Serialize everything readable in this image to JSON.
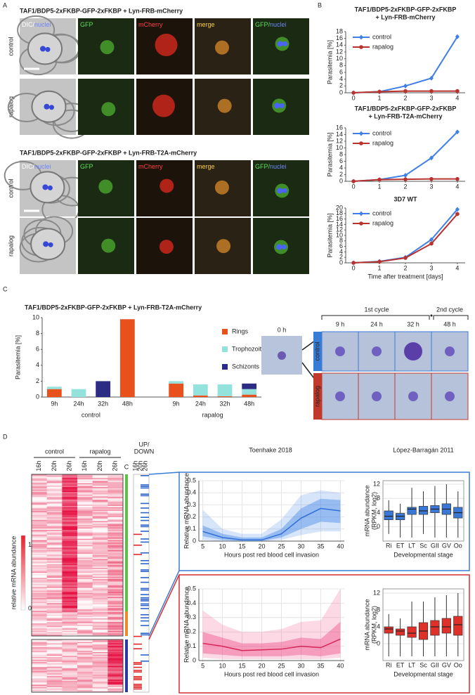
{
  "panel_labels": [
    "A",
    "B",
    "C",
    "D"
  ],
  "panel_a": {
    "constructs": [
      "TAF1/BDP5-2xFKBP-GFP-2xFKBP + Lyn-FRB-mCherry",
      "TAF1/BDP5-2xFKBP-GFP-2xFKBP + Lyn-FRB-T2A-mCherry"
    ],
    "conditions": [
      {
        "text": "control",
        "color": "#3a7bd5"
      },
      {
        "text": "rapalog",
        "color": "#c0392b"
      }
    ],
    "channels": [
      [
        {
          "text": "DIC/",
          "color": "#ffffff"
        },
        {
          "text": "nuclei",
          "color": "#6f86ff"
        }
      ],
      [
        {
          "text": "GFP",
          "color": "#5fe05f"
        }
      ],
      [
        {
          "text": "mCherry",
          "color": "#ff4040"
        }
      ],
      [
        {
          "text": "merge",
          "color": "#ffd23a"
        }
      ],
      [
        {
          "text": "GFP/",
          "color": "#5fe05f"
        },
        {
          "text": "nuclei",
          "color": "#6f86ff"
        }
      ]
    ]
  },
  "panel_c_images": {
    "start": "0 h",
    "cycles": [
      "1st cycle",
      "2nd cycle"
    ],
    "times": [
      "9 h",
      "24 h",
      "32 h",
      "48 h"
    ]
  },
  "panel_d_heatmap": {
    "groups": [
      "control",
      "rapalog"
    ],
    "times": [
      "16h",
      "20h",
      "26h"
    ],
    "colorbar_label": "relative mRNA abundance",
    "colorbar_ticks": [
      1,
      0
    ],
    "cluster_label": "C",
    "updown": [
      {
        "text": "UP/",
        "color": "#d03030"
      },
      {
        "text": "DOWN",
        "color": "#3a7bd5"
      }
    ]
  },
  "chart_data": [
    {
      "type": "line",
      "title": [
        "TAF1/BDP5-2xFKBP-GFP-2xFKBP",
        "+ Lyn-FRB-mCherry"
      ],
      "ylabel": "Parasitemia [%]",
      "x": [
        0,
        1,
        2,
        3,
        4
      ],
      "xlim": [
        -0.3,
        4.3
      ],
      "xticks": [
        0,
        1,
        2,
        3,
        4
      ],
      "ylim": [
        0,
        18
      ],
      "yticks": [
        0,
        2,
        4,
        6,
        8,
        10,
        12,
        14,
        16,
        18
      ],
      "legend": "upper left",
      "series": [
        {
          "name": "control",
          "color": "#3f7fe6",
          "marker": "diamond",
          "values": [
            0,
            0.3,
            2,
            4.3,
            16.5
          ]
        },
        {
          "name": "rapalog",
          "color": "#b8322e",
          "marker": "circle",
          "values": [
            0,
            0.3,
            0.5,
            0.5,
            0.5
          ]
        }
      ]
    },
    {
      "type": "line",
      "title": [
        "TAF1/BDP5-2xFKBP-GFP-2xFKBP",
        "+ Lyn-FRB-T2A-mCherry"
      ],
      "ylabel": "Parasitemia [%]",
      "x": [
        0,
        1,
        2,
        3,
        4
      ],
      "xlim": [
        -0.3,
        4.3
      ],
      "xticks": [
        0,
        1,
        2,
        3,
        4
      ],
      "ylim": [
        0,
        16
      ],
      "yticks": [
        0,
        2,
        4,
        6,
        8,
        10,
        12,
        14,
        16
      ],
      "legend": "upper left",
      "series": [
        {
          "name": "control",
          "color": "#3f7fe6",
          "marker": "diamond",
          "values": [
            0,
            0.5,
            1.8,
            7,
            14.8
          ]
        },
        {
          "name": "rapalog",
          "color": "#b8322e",
          "marker": "circle",
          "values": [
            0,
            0.5,
            0.6,
            0.7,
            0.7
          ]
        }
      ]
    },
    {
      "type": "line",
      "title": [
        "3D7 WT"
      ],
      "ylabel": "Parasitemia [%]",
      "xlabel": "Time after treatment [days]",
      "x": [
        0,
        1,
        2,
        3,
        4
      ],
      "xlim": [
        -0.3,
        4.3
      ],
      "xticks": [
        0,
        1,
        2,
        3,
        4
      ],
      "ylim": [
        0,
        20
      ],
      "yticks": [
        0,
        2,
        4,
        6,
        8,
        10,
        12,
        14,
        16,
        18,
        20
      ],
      "legend": "upper left",
      "series": [
        {
          "name": "control",
          "color": "#3f7fe6",
          "marker": "diamond",
          "values": [
            0,
            0.5,
            2,
            8.5,
            19.5
          ]
        },
        {
          "name": "rapalog",
          "color": "#b8322e",
          "marker": "circle",
          "values": [
            0,
            0.4,
            1.8,
            7,
            17.8
          ]
        }
      ]
    },
    {
      "type": "bar",
      "title": [
        "TAF1/BDP5-2xFKBP-GFP-2xFKBP + Lyn-FRB-T2A-mCherry"
      ],
      "ylabel": "Parasitemia [%]",
      "categories": [
        "9h",
        "24h",
        "32h",
        "48h",
        "9h",
        "24h",
        "32h",
        "48h"
      ],
      "groups": [
        {
          "name": "control",
          "color": "#3a7bd5"
        },
        {
          "name": "rapalog",
          "color": "#c0392b"
        }
      ],
      "ylim": [
        0,
        10
      ],
      "yticks": [
        0,
        2,
        4,
        6,
        8,
        10
      ],
      "legend": "upper right",
      "series": [
        {
          "name": "Rings",
          "color": "#e8501c",
          "values": [
            1.0,
            0,
            0,
            9.8,
            1.7,
            0.2,
            0.1,
            0.3
          ]
        },
        {
          "name": "Trophozoites",
          "color": "#93e2dc",
          "values": [
            0.3,
            1.0,
            0,
            0,
            0.3,
            1.4,
            1.5,
            0.7
          ]
        },
        {
          "name": "Schizonts",
          "color": "#2c2c84",
          "values": [
            0,
            0,
            2.0,
            0,
            0,
            0,
            0,
            0.7
          ]
        }
      ]
    },
    {
      "type": "line",
      "title": [
        "Toenhake 2018"
      ],
      "ylabel": "Relative mRNA abundance",
      "xlabel": "Hours post red blood cell invasion",
      "grid": true,
      "x": [
        5,
        10,
        15,
        20,
        25,
        30,
        35,
        40
      ],
      "xlim": [
        4,
        41
      ],
      "xticks": [
        5,
        10,
        15,
        20,
        25,
        30,
        35,
        40
      ],
      "ylim": [
        0,
        0.5
      ],
      "yticks": [
        0,
        0.1,
        0.2,
        0.3,
        0.4,
        0.5
      ],
      "series": [
        {
          "color": "#2f6fd6",
          "band_color": "#4a8ae6",
          "values": [
            0.08,
            0.03,
            0.01,
            0.01,
            0.06,
            0.19,
            0.27,
            0.25
          ],
          "band_inner": {
            "low": [
              0.04,
              0.01,
              0,
              0,
              0.03,
              0.1,
              0.16,
              0.15
            ],
            "high": [
              0.13,
              0.06,
              0.03,
              0.03,
              0.1,
              0.27,
              0.35,
              0.34
            ]
          },
          "band_outer": {
            "low": [
              0.01,
              0,
              0,
              0,
              0.01,
              0.05,
              0.08,
              0.08
            ],
            "high": [
              0.26,
              0.1,
              0.06,
              0.06,
              0.18,
              0.38,
              0.42,
              0.4
            ]
          }
        }
      ]
    },
    {
      "type": "line",
      "ylabel": "Relative mRNA abundance",
      "xlabel": "Hours post red blood cell invasion",
      "grid": true,
      "x": [
        5,
        10,
        15,
        20,
        25,
        30,
        35,
        40
      ],
      "xlim": [
        4,
        41
      ],
      "xticks": [
        5,
        10,
        15,
        20,
        25,
        30,
        35,
        40
      ],
      "ylim": [
        0,
        0.5
      ],
      "yticks": [
        0,
        0.1,
        0.2,
        0.3,
        0.4,
        0.5
      ],
      "series": [
        {
          "color": "#d8265a",
          "band_color": "#f0528a",
          "values": [
            0.12,
            0.1,
            0.07,
            0.075,
            0.08,
            0.1,
            0.09,
            0.15
          ],
          "band_inner": {
            "low": [
              0.05,
              0.04,
              0.03,
              0.03,
              0.03,
              0.04,
              0.03,
              0.05
            ],
            "high": [
              0.2,
              0.16,
              0.12,
              0.12,
              0.13,
              0.16,
              0.15,
              0.27
            ]
          },
          "band_outer": {
            "low": [
              0.02,
              0.01,
              0.01,
              0.01,
              0.01,
              0.01,
              0.01,
              0.02
            ],
            "high": [
              0.35,
              0.25,
              0.2,
              0.2,
              0.22,
              0.27,
              0.28,
              0.5
            ]
          }
        }
      ]
    },
    {
      "type": "box",
      "title": [
        "López-Barragán 2011"
      ],
      "ylabel": [
        "mRNA abundance",
        "(RPKM, log2)"
      ],
      "xlabel": "Developmental stage",
      "grid": true,
      "categories": [
        "Ri",
        "ET",
        "LT",
        "Sc",
        "GII",
        "GV",
        "Oo"
      ],
      "ylim": [
        -4,
        13
      ],
      "yticks": [
        0,
        4,
        8,
        12
      ],
      "series": [
        {
          "color": "#3a78d8",
          "values": [
            [
              -2,
              2,
              3,
              4.5,
              7.5
            ],
            [
              -3,
              2,
              3,
              3.8,
              6.5
            ],
            [
              -3,
              3.5,
              5,
              5.5,
              11
            ],
            [
              -2,
              3.5,
              4.5,
              5.8,
              10
            ],
            [
              -3,
              4,
              5,
              6,
              11.5
            ],
            [
              -3,
              3.5,
              5,
              6.5,
              12
            ],
            [
              -3,
              2.5,
              4,
              5.5,
              10
            ]
          ]
        }
      ]
    },
    {
      "type": "box",
      "ylabel": [
        "mRNA abundance",
        "(RPKM, log2)"
      ],
      "xlabel": "Developmental stage",
      "grid": true,
      "categories": [
        "Ri",
        "ET",
        "LT",
        "Sc",
        "GII",
        "GV",
        "Oo"
      ],
      "ylim": [
        -4,
        13
      ],
      "yticks": [
        0,
        4,
        8,
        12
      ],
      "series": [
        {
          "color": "#e0302a",
          "values": [
            [
              -3,
              2.5,
              3.5,
              4,
              7
            ],
            [
              -3,
              2,
              3,
              3.5,
              6
            ],
            [
              -3,
              1.5,
              2.5,
              4,
              10
            ],
            [
              -3,
              1,
              3,
              5,
              10
            ],
            [
              -3,
              2,
              4,
              5.5,
              11
            ],
            [
              -3,
              2.5,
              4,
              6,
              11.5
            ],
            [
              -3,
              2,
              4.5,
              6.5,
              12
            ]
          ]
        }
      ]
    }
  ]
}
